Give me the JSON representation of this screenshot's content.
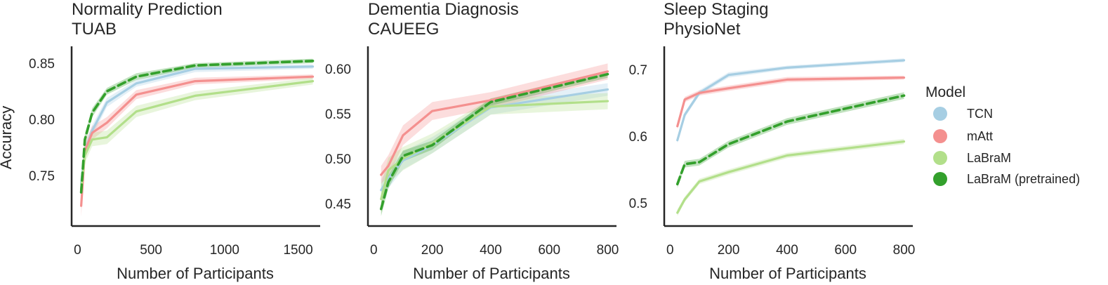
{
  "chart_data": [
    {
      "type": "line",
      "title": "Normality Prediction",
      "subtitle": "TUAB",
      "xlabel": "Number of Participants",
      "ylabel": "Accuracy",
      "xlim": [
        -40,
        1650
      ],
      "ylim": [
        0.705,
        0.865
      ],
      "xticks": [
        0,
        500,
        1000,
        1500
      ],
      "yticks": [
        0.75,
        0.8,
        0.85
      ],
      "ytick_labels": [
        "0.75",
        "0.80",
        "0.85"
      ],
      "x": [
        25,
        50,
        100,
        200,
        400,
        800,
        1600
      ],
      "series": [
        {
          "name": "TCN",
          "values": [
            0.743,
            0.772,
            0.79,
            0.815,
            0.832,
            0.845,
            0.847
          ],
          "band": [
            0.006,
            0.005,
            0.005,
            0.004,
            0.003,
            0.003,
            0.002
          ]
        },
        {
          "name": "mAtt",
          "values": [
            0.723,
            0.772,
            0.788,
            0.797,
            0.822,
            0.834,
            0.838
          ],
          "band": [
            0.01,
            0.008,
            0.006,
            0.005,
            0.004,
            0.003,
            0.002
          ]
        },
        {
          "name": "LaBraM",
          "values": [
            0.738,
            0.768,
            0.782,
            0.784,
            0.807,
            0.821,
            0.834
          ],
          "band": [
            0.008,
            0.007,
            0.006,
            0.006,
            0.005,
            0.004,
            0.003
          ]
        },
        {
          "name": "LaBraM (pretrained)",
          "values": [
            0.735,
            0.782,
            0.806,
            0.825,
            0.838,
            0.848,
            0.852
          ],
          "band": [
            0.006,
            0.005,
            0.004,
            0.003,
            0.003,
            0.002,
            0.002
          ]
        }
      ]
    },
    {
      "type": "line",
      "title": "Dementia Diagnosis",
      "subtitle": "CAUEEG",
      "xlabel": "Number of Participants",
      "ylabel": "",
      "xlim": [
        -20,
        830
      ],
      "ylim": [
        0.425,
        0.625
      ],
      "xticks": [
        0,
        200,
        400,
        600,
        800
      ],
      "yticks": [
        0.45,
        0.5,
        0.55,
        0.6
      ],
      "ytick_labels": [
        "0.45",
        "0.50",
        "0.55",
        "0.60"
      ],
      "x": [
        25,
        50,
        100,
        200,
        400,
        800
      ],
      "series": [
        {
          "name": "TCN",
          "values": [
            0.465,
            0.478,
            0.498,
            0.515,
            0.557,
            0.577
          ],
          "band": [
            0.012,
            0.011,
            0.01,
            0.009,
            0.008,
            0.007
          ]
        },
        {
          "name": "mAtt",
          "values": [
            0.482,
            0.492,
            0.526,
            0.553,
            0.565,
            0.597
          ],
          "band": [
            0.01,
            0.012,
            0.011,
            0.01,
            0.009,
            0.009
          ]
        },
        {
          "name": "LaBraM",
          "values": [
            0.455,
            0.487,
            0.5,
            0.517,
            0.558,
            0.564
          ],
          "band": [
            0.016,
            0.014,
            0.013,
            0.011,
            0.009,
            0.009
          ]
        },
        {
          "name": "LaBraM (pretrained)",
          "values": [
            0.444,
            0.474,
            0.503,
            0.515,
            0.563,
            0.594
          ],
          "band": [
            0.008,
            0.007,
            0.006,
            0.005,
            0.004,
            0.004
          ]
        }
      ]
    },
    {
      "type": "line",
      "title": "Sleep Staging",
      "subtitle": "PhysioNet",
      "xlabel": "Number of Participants",
      "ylabel": "",
      "xlim": [
        -20,
        830
      ],
      "ylim": [
        0.465,
        0.735
      ],
      "xticks": [
        0,
        200,
        400,
        600,
        800
      ],
      "yticks": [
        0.5,
        0.6,
        0.7
      ],
      "ytick_labels": [
        "0.5",
        "0.6",
        "0.7"
      ],
      "x": [
        25,
        50,
        100,
        200,
        400,
        800
      ],
      "series": [
        {
          "name": "TCN",
          "values": [
            0.594,
            0.632,
            0.665,
            0.692,
            0.703,
            0.714
          ],
          "band": [
            0.005,
            0.004,
            0.004,
            0.004,
            0.003,
            0.003
          ]
        },
        {
          "name": "mAtt",
          "values": [
            0.615,
            0.655,
            0.665,
            0.672,
            0.685,
            0.688
          ],
          "band": [
            0.005,
            0.004,
            0.004,
            0.004,
            0.004,
            0.003
          ]
        },
        {
          "name": "LaBraM",
          "values": [
            0.485,
            0.505,
            0.532,
            0.546,
            0.571,
            0.592
          ],
          "band": [
            0.005,
            0.004,
            0.004,
            0.004,
            0.004,
            0.004
          ]
        },
        {
          "name": "LaBraM (pretrained)",
          "values": [
            0.528,
            0.558,
            0.561,
            0.588,
            0.622,
            0.661
          ],
          "band": [
            0.006,
            0.005,
            0.005,
            0.005,
            0.005,
            0.005
          ]
        }
      ]
    }
  ],
  "legend": {
    "title": "Model",
    "placement": "right",
    "items": [
      {
        "label": "TCN",
        "color": "#a6cee3",
        "dashed": false
      },
      {
        "label": "mAtt",
        "color": "#f4908f",
        "dashed": false
      },
      {
        "label": "LaBraM",
        "color": "#b2df8a",
        "dashed": false
      },
      {
        "label": "LaBraM (pretrained)",
        "color": "#33a02c",
        "dashed": true
      }
    ]
  }
}
